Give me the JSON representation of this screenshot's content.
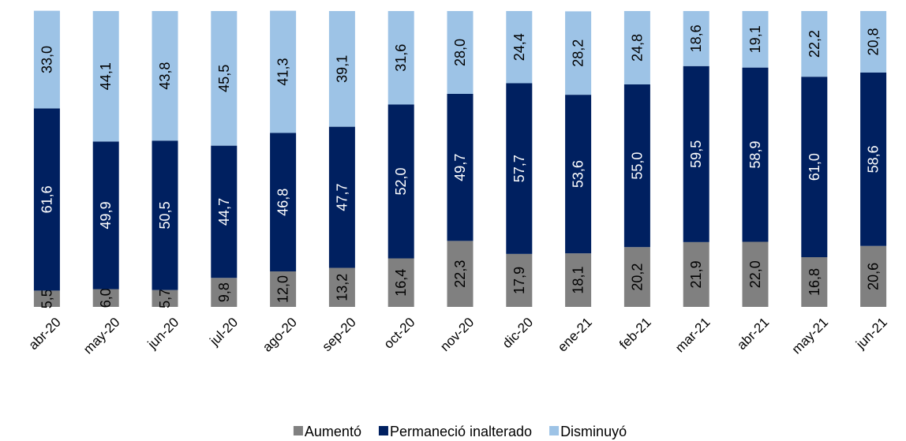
{
  "chart_data": {
    "type": "stacked_bar",
    "categories": [
      "abr-20",
      "may-20",
      "jun-20",
      "jul-20",
      "ago-20",
      "sep-20",
      "oct-20",
      "nov-20",
      "dic-20",
      "ene-21",
      "feb-21",
      "mar-21",
      "abr-21",
      "may-21",
      "jun-21"
    ],
    "ylim": [
      0,
      100
    ],
    "legend": "bottom",
    "series": [
      {
        "name": "Aumentó",
        "color": "#808080",
        "values": [
          5.5,
          6.0,
          5.7,
          9.8,
          12.0,
          13.2,
          16.4,
          22.3,
          17.9,
          18.1,
          20.2,
          21.9,
          22.0,
          16.8,
          20.6
        ],
        "value_labels": [
          "5,5",
          "6,0",
          "5,7",
          "9,8",
          "12,0",
          "13,2",
          "16,4",
          "22,3",
          "17,9",
          "18,1",
          "20,2",
          "21,9",
          "22,0",
          "16,8",
          "20,6"
        ]
      },
      {
        "name": "Permaneció inalterado",
        "color": "#002060",
        "values": [
          61.6,
          49.9,
          50.5,
          44.7,
          46.8,
          47.7,
          52.0,
          49.7,
          57.7,
          53.6,
          55.0,
          59.5,
          58.9,
          61.0,
          58.6
        ],
        "value_labels": [
          "61,6",
          "49,9",
          "50,5",
          "44,7",
          "46,8",
          "47,7",
          "52,0",
          "49,7",
          "57,7",
          "53,6",
          "55,0",
          "59,5",
          "58,9",
          "61,0",
          "58,6"
        ]
      },
      {
        "name": "Disminuyó",
        "color": "#9dc3e6",
        "values": [
          33.0,
          44.1,
          43.8,
          45.5,
          41.3,
          39.1,
          31.6,
          28.0,
          24.4,
          28.2,
          24.8,
          18.6,
          19.1,
          22.2,
          20.8
        ],
        "value_labels": [
          "33,0",
          "44,1",
          "43,8",
          "45,5",
          "41,3",
          "39,1",
          "31,6",
          "28,0",
          "24,4",
          "28,2",
          "24,8",
          "18,6",
          "19,1",
          "22,2",
          "20,8"
        ]
      }
    ]
  }
}
